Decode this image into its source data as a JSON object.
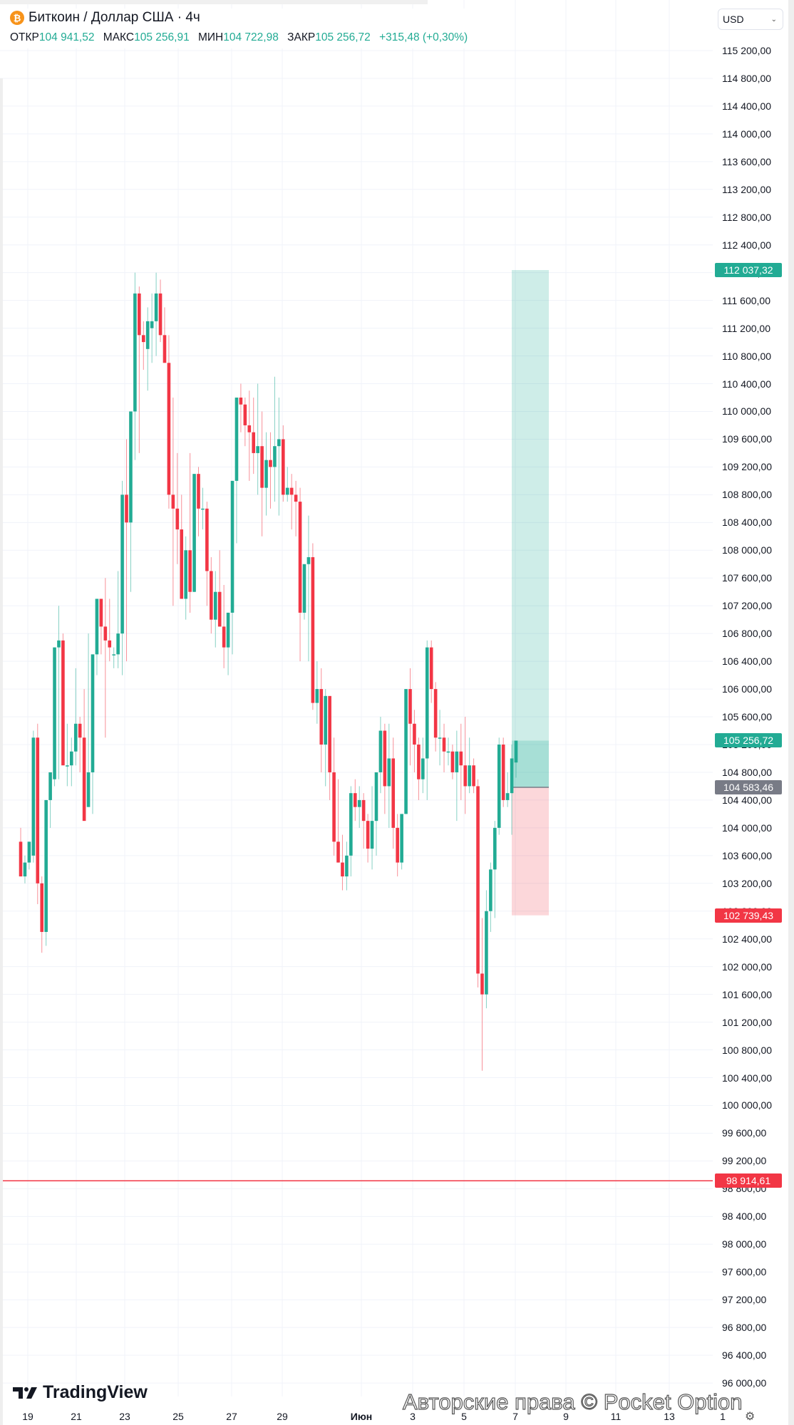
{
  "header": {
    "symbol_icon": "bitcoin-icon",
    "title": "Биткоин / Доллар США · 4ч",
    "ohlc": [
      {
        "label": "ОТКР",
        "value": "104 941,52"
      },
      {
        "label": "МАКС",
        "value": "105 256,91"
      },
      {
        "label": "МИН",
        "value": "104 722,98"
      },
      {
        "label": "ЗАКР",
        "value": "105 256,72"
      }
    ],
    "change": "+315,48 (+0,30%)"
  },
  "currency_select": {
    "value": "USD",
    "icon": "chevron-down-icon"
  },
  "branding": {
    "logo": "TradingView",
    "watermark": "Авторские права © Pocket Option"
  },
  "colors": {
    "up": "#22ab94",
    "down": "#f23645",
    "grid": "#f0f3fa",
    "target_zone": "#22ab94",
    "stop_zone": "#f23645",
    "entry_tag": "#787b86"
  },
  "chart_data": {
    "type": "candlestick",
    "title": "Биткоин / Доллар США · 4ч",
    "xlabel": "",
    "ylabel": "USD",
    "ylim": [
      95800,
      115400
    ],
    "grid": true,
    "y_ticks": [
      "115 200,00",
      "114 800,00",
      "114 400,00",
      "114 000,00",
      "113 600,00",
      "113 200,00",
      "112 800,00",
      "112 400,00",
      "112 000,00",
      "111 600,00",
      "111 200,00",
      "110 800,00",
      "110 400,00",
      "110 000,00",
      "109 600,00",
      "109 200,00",
      "108 800,00",
      "108 400,00",
      "108 000,00",
      "107 600,00",
      "107 200,00",
      "106 800,00",
      "106 400,00",
      "106 000,00",
      "105 600,00",
      "105 200,00",
      "104 800,00",
      "104 400,00",
      "104 000,00",
      "103 600,00",
      "103 200,00",
      "102 800,00",
      "102 400,00",
      "102 000,00",
      "101 600,00",
      "101 200,00",
      "100 800,00",
      "100 400,00",
      "100 000,00",
      "99 600,00",
      "99 200,00",
      "98 800,00",
      "98 400,00",
      "98 000,00",
      "97 600,00",
      "97 200,00",
      "96 800,00",
      "96 400,00",
      "96 000,00"
    ],
    "x_ticks": [
      "19",
      "21",
      "23",
      "25",
      "27",
      "29",
      "Июн",
      "3",
      "5",
      "7",
      "9",
      "11",
      "13",
      "1"
    ],
    "price_tags": [
      {
        "label": "112 037,32",
        "value": 112037.32,
        "kind": "take-profit"
      },
      {
        "label": "105 256,72",
        "value": 105256.72,
        "kind": "last-price"
      },
      {
        "label": "104 583,46",
        "value": 104583.46,
        "kind": "entry"
      },
      {
        "label": "102 739,43",
        "value": 102739.43,
        "kind": "stop-loss"
      },
      {
        "label": "98 914,61",
        "value": 98914.61,
        "kind": "horizontal-line"
      }
    ],
    "position": {
      "entry": 104583.46,
      "take_profit": 112037.32,
      "stop_loss": 102739.43
    },
    "horizontal_line": 98914.61,
    "candles": [
      [
        103800,
        104000,
        103300,
        103300
      ],
      [
        103300,
        103600,
        103200,
        103500
      ],
      [
        103500,
        103800,
        103400,
        103800
      ],
      [
        103600,
        105400,
        103500,
        105300
      ],
      [
        105300,
        105500,
        102900,
        103200
      ],
      [
        103200,
        103300,
        102200,
        102500
      ],
      [
        102500,
        104400,
        102300,
        104400
      ],
      [
        104400,
        104800,
        104000,
        104800
      ],
      [
        104700,
        106600,
        104600,
        106600
      ],
      [
        106600,
        107200,
        104700,
        106700
      ],
      [
        106700,
        106800,
        105200,
        104900
      ],
      [
        104900,
        105500,
        104600,
        104900
      ],
      [
        104900,
        105300,
        104600,
        105100
      ],
      [
        105100,
        106300,
        104900,
        105500
      ],
      [
        105500,
        105600,
        104800,
        105300
      ],
      [
        105300,
        106000,
        104400,
        104100
      ],
      [
        104300,
        106800,
        104300,
        104800
      ],
      [
        104800,
        106400,
        104200,
        106500
      ],
      [
        106500,
        107100,
        106200,
        107300
      ],
      [
        107300,
        107200,
        106500,
        106900
      ],
      [
        106900,
        107600,
        105300,
        106700
      ],
      [
        106700,
        107300,
        106400,
        106600
      ],
      [
        106500,
        106600,
        106300,
        106500
      ],
      [
        106500,
        107700,
        106300,
        106800
      ],
      [
        106800,
        109000,
        106200,
        108800
      ],
      [
        108800,
        109600,
        106400,
        108400
      ],
      [
        108400,
        109800,
        107400,
        110000
      ],
      [
        110000,
        112000,
        109300,
        111700
      ],
      [
        111700,
        111800,
        109400,
        111100
      ],
      [
        111100,
        111300,
        110600,
        111000
      ],
      [
        110900,
        111500,
        110300,
        111300
      ],
      [
        111200,
        111700,
        110700,
        111300
      ],
      [
        111300,
        112000,
        110800,
        111700
      ],
      [
        111700,
        111900,
        111000,
        111100
      ],
      [
        111100,
        111500,
        110800,
        110700
      ],
      [
        110700,
        111100,
        108600,
        108800
      ],
      [
        108800,
        110200,
        107200,
        108600
      ],
      [
        108600,
        109400,
        107800,
        108300
      ],
      [
        108300,
        108800,
        107400,
        107300
      ],
      [
        107300,
        108200,
        107000,
        108000
      ],
      [
        108000,
        109400,
        107100,
        107400
      ],
      [
        107400,
        109100,
        107400,
        109100
      ],
      [
        109100,
        109200,
        108200,
        108600
      ],
      [
        108600,
        108900,
        108300,
        108600
      ],
      [
        108600,
        108700,
        107200,
        107700
      ],
      [
        107700,
        107900,
        106800,
        107000
      ],
      [
        107000,
        107700,
        106600,
        107400
      ],
      [
        107400,
        108000,
        106900,
        106900
      ],
      [
        106900,
        107500,
        106300,
        106600
      ],
      [
        106600,
        107100,
        106200,
        107100
      ],
      [
        107100,
        109000,
        106500,
        109000
      ],
      [
        109000,
        110100,
        108100,
        110200
      ],
      [
        110200,
        110400,
        109700,
        110100
      ],
      [
        110100,
        110200,
        109500,
        109800
      ],
      [
        109800,
        110300,
        109000,
        109700
      ],
      [
        109700,
        110200,
        109100,
        109400
      ],
      [
        109400,
        110400,
        108800,
        109500
      ],
      [
        109500,
        110000,
        108200,
        108900
      ],
      [
        108900,
        109700,
        108500,
        109300
      ],
      [
        109300,
        109700,
        108600,
        109200
      ],
      [
        109200,
        110500,
        108700,
        109500
      ],
      [
        109500,
        110200,
        108500,
        109600
      ],
      [
        109600,
        109800,
        108700,
        108800
      ],
      [
        108800,
        109200,
        108700,
        108900
      ],
      [
        108900,
        109100,
        108300,
        108800
      ],
      [
        108800,
        109000,
        108200,
        108700
      ],
      [
        108700,
        108900,
        106400,
        107100
      ],
      [
        107100,
        107600,
        107000,
        107800
      ],
      [
        107800,
        108500,
        106400,
        107900
      ],
      [
        107900,
        108100,
        105700,
        105800
      ],
      [
        105800,
        106400,
        105500,
        106000
      ],
      [
        106000,
        106300,
        104800,
        105200
      ],
      [
        105200,
        106000,
        104600,
        105900
      ],
      [
        105900,
        105700,
        104400,
        104800
      ],
      [
        104800,
        105300,
        103600,
        103800
      ],
      [
        103800,
        104700,
        103500,
        103500
      ],
      [
        103500,
        103900,
        103100,
        103300
      ],
      [
        103300,
        103800,
        103100,
        103600
      ],
      [
        103600,
        104600,
        103300,
        104500
      ],
      [
        104500,
        104700,
        104100,
        104300
      ],
      [
        104300,
        104600,
        104000,
        104400
      ],
      [
        104400,
        104500,
        103700,
        104100
      ],
      [
        104100,
        104200,
        103500,
        103700
      ],
      [
        103700,
        104600,
        103400,
        104100
      ],
      [
        104100,
        104800,
        103600,
        104800
      ],
      [
        104800,
        105600,
        104500,
        105400
      ],
      [
        105400,
        105500,
        104200,
        104600
      ],
      [
        104600,
        105500,
        104000,
        105000
      ],
      [
        105000,
        105300,
        103700,
        104000
      ],
      [
        104000,
        104200,
        103300,
        103500
      ],
      [
        103500,
        104100,
        103400,
        104200
      ],
      [
        104200,
        106000,
        104200,
        106000
      ],
      [
        106000,
        106300,
        104900,
        105500
      ],
      [
        105500,
        105700,
        104800,
        105200
      ],
      [
        105200,
        105300,
        104400,
        104700
      ],
      [
        104700,
        105300,
        104500,
        105000
      ],
      [
        105000,
        106700,
        104400,
        106600
      ],
      [
        106600,
        106700,
        105800,
        106000
      ],
      [
        106000,
        106100,
        105100,
        105300
      ],
      [
        105300,
        105700,
        104900,
        105300
      ],
      [
        105300,
        105500,
        104800,
        105100
      ],
      [
        105100,
        105300,
        104900,
        105100
      ],
      [
        105100,
        105200,
        104700,
        104800
      ],
      [
        104800,
        105400,
        104100,
        105100
      ],
      [
        105100,
        105500,
        104400,
        104900
      ],
      [
        104900,
        105600,
        104200,
        104600
      ],
      [
        104600,
        105300,
        104500,
        104900
      ],
      [
        104900,
        105000,
        104500,
        104600
      ],
      [
        104600,
        104700,
        101700,
        101900
      ],
      [
        101900,
        102700,
        100500,
        101600
      ],
      [
        101600,
        103100,
        101400,
        102800
      ],
      [
        102800,
        103500,
        102500,
        103400
      ],
      [
        103400,
        104100,
        102700,
        104000
      ],
      [
        104000,
        105300,
        103900,
        105200
      ],
      [
        105200,
        105300,
        104300,
        104400
      ],
      [
        104400,
        104800,
        104300,
        104500
      ],
      [
        104500,
        105200,
        103900,
        105000
      ],
      [
        104941.52,
        105256.91,
        104722.98,
        105256.72
      ]
    ]
  }
}
